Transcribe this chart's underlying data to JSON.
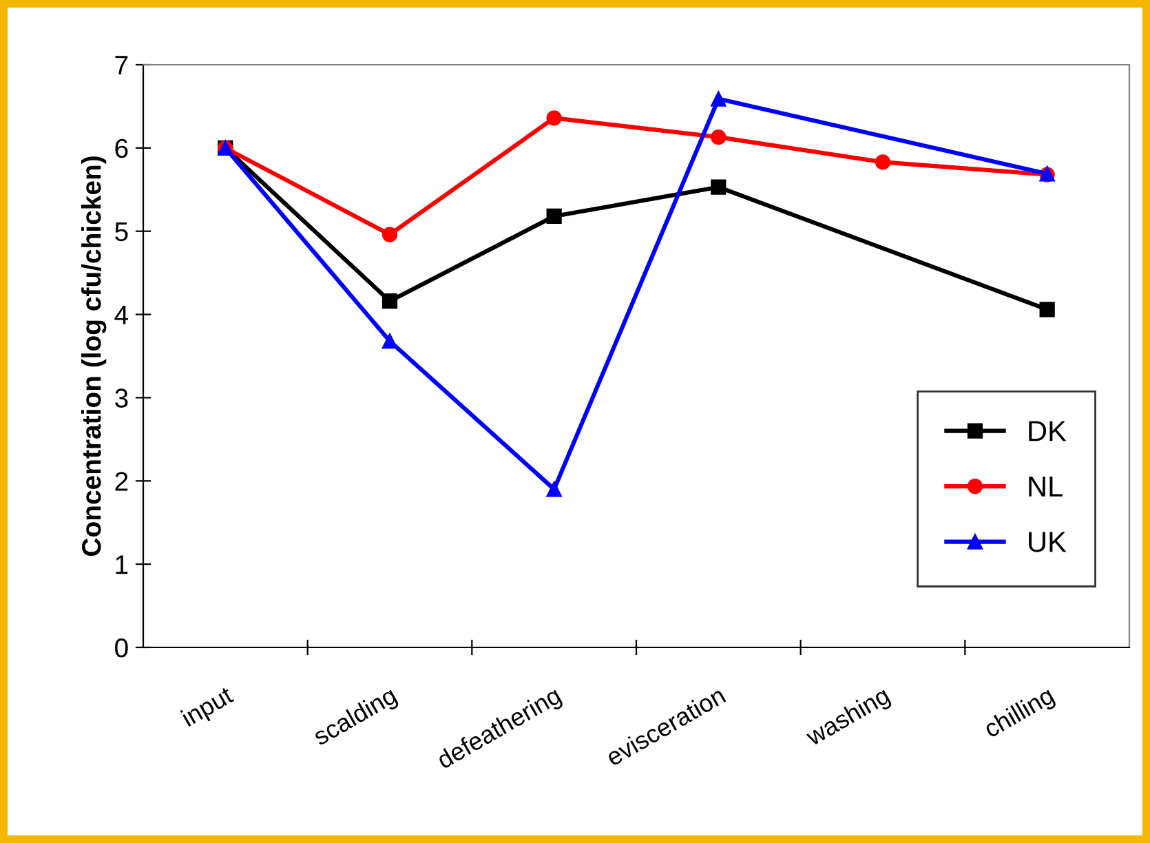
{
  "chart_data": {
    "type": "line",
    "ylabel": "Concentration (log cfu/chicken)",
    "categories": [
      "input",
      "scalding",
      "defeathering",
      "evisceration",
      "washing",
      "chilling"
    ],
    "series": [
      {
        "name": "DK",
        "color": "#000000",
        "marker": "square",
        "values": [
          6.0,
          4.16,
          5.18,
          5.53,
          null,
          4.06
        ]
      },
      {
        "name": "NL",
        "color": "#ff0000",
        "marker": "circle",
        "values": [
          6.0,
          4.96,
          6.36,
          6.13,
          5.83,
          5.68
        ]
      },
      {
        "name": "UK",
        "color": "#0000ff",
        "marker": "triangle",
        "values": [
          6.0,
          3.68,
          1.9,
          6.59,
          null,
          5.69
        ]
      }
    ],
    "ylim": [
      0,
      7
    ],
    "yticks": [
      0,
      1,
      2,
      3,
      4,
      5,
      6,
      7
    ],
    "grid": false,
    "legend": "bottom right",
    "line_style": "solid"
  }
}
